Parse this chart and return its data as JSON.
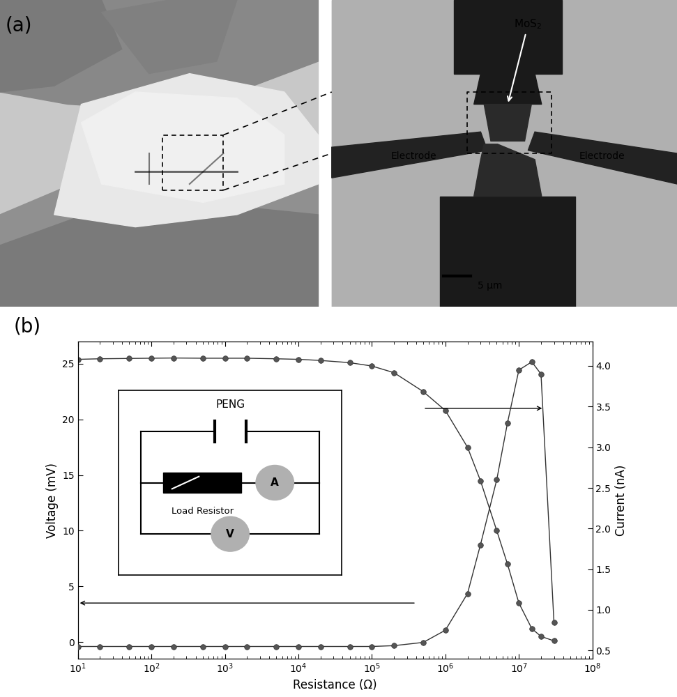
{
  "resistance": [
    10,
    20,
    50,
    100,
    200,
    500,
    1000,
    2000,
    5000,
    10000,
    20000,
    50000,
    100000,
    200000,
    500000,
    1000000,
    2000000,
    3000000,
    5000000,
    7000000,
    10000000,
    15000000,
    20000000,
    30000000
  ],
  "voltage": [
    25.4,
    25.45,
    25.48,
    25.5,
    25.52,
    25.5,
    25.5,
    25.5,
    25.45,
    25.4,
    25.3,
    25.1,
    24.8,
    24.2,
    22.5,
    20.8,
    17.5,
    14.5,
    10.0,
    7.0,
    3.5,
    1.2,
    0.5,
    0.1
  ],
  "current": [
    0.55,
    0.55,
    0.55,
    0.55,
    0.55,
    0.55,
    0.55,
    0.55,
    0.55,
    0.55,
    0.55,
    0.55,
    0.55,
    0.56,
    0.6,
    0.75,
    1.2,
    1.8,
    2.6,
    3.3,
    3.95,
    4.05,
    3.9,
    0.85
  ],
  "ylabel_left": "Voltage (mV)",
  "ylabel_right": "Current (nA)",
  "xlabel": "Resistance (Ω)",
  "ylim_left": [
    -1.5,
    27
  ],
  "ylim_right": [
    0.4,
    4.3
  ],
  "yticks_left": [
    0,
    5,
    10,
    15,
    20,
    25
  ],
  "yticks_right": [
    0.5,
    1.0,
    1.5,
    2.0,
    2.5,
    3.0,
    3.5,
    4.0
  ],
  "line_color": "#333333",
  "marker_color": "#444444",
  "marker_size": 5.5,
  "bg_color": "#ffffff",
  "panel_a_label": "(a)",
  "panel_b_label": "(b)"
}
